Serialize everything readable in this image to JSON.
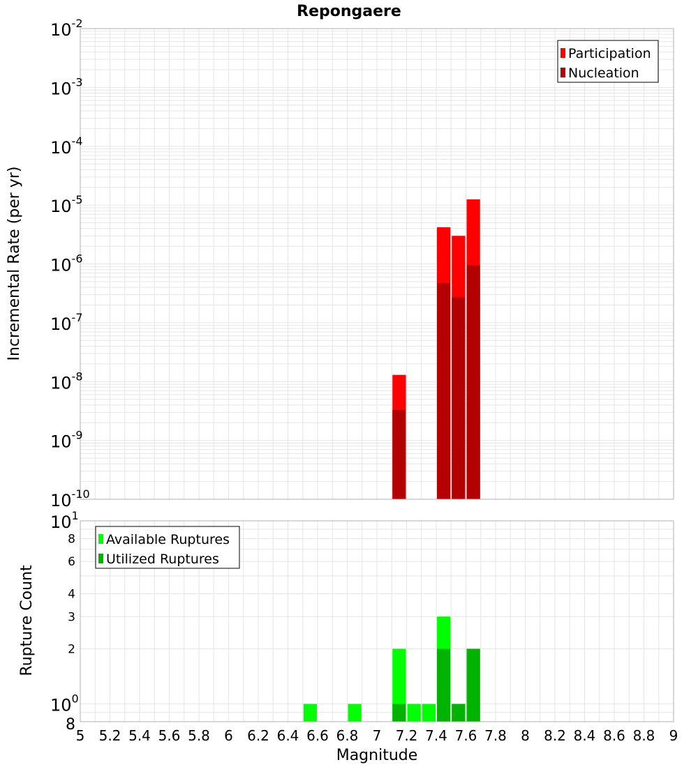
{
  "chart_data": [
    {
      "type": "bar",
      "title": "Repongaere",
      "xlabel": "",
      "ylabel": "Incremental Rate (per yr)",
      "yscale": "log",
      "xlim": [
        5,
        9
      ],
      "ylim": [
        1e-10,
        0.01
      ],
      "y_tick_exponents": [
        -2,
        -3,
        -4,
        -5,
        -6,
        -7,
        -8,
        -9,
        -10
      ],
      "grid": true,
      "legend_position": "top-right",
      "bin_width": 0.1,
      "series": [
        {
          "name": "Participation",
          "color": "#ff0000",
          "points": [
            {
              "x": 7.15,
              "y": 1.3e-08
            },
            {
              "x": 7.45,
              "y": 4.2e-06
            },
            {
              "x": 7.55,
              "y": 3e-06
            },
            {
              "x": 7.65,
              "y": 1.25e-05
            }
          ]
        },
        {
          "name": "Nucleation",
          "color": "#b30000",
          "points": [
            {
              "x": 7.15,
              "y": 3.3e-09
            },
            {
              "x": 7.45,
              "y": 4.7e-07
            },
            {
              "x": 7.55,
              "y": 2.7e-07
            },
            {
              "x": 7.65,
              "y": 9.5e-07
            }
          ]
        }
      ]
    },
    {
      "type": "bar",
      "title": "",
      "xlabel": "Magnitude",
      "ylabel": "Rupture Count",
      "yscale": "log",
      "xlim": [
        5,
        9
      ],
      "ylim": [
        0.8,
        10
      ],
      "x_ticks": [
        "5",
        "5.2",
        "5.4",
        "5.6",
        "5.8",
        "6",
        "6.2",
        "6.4",
        "6.6",
        "6.8",
        "7",
        "7.2",
        "7.4",
        "7.6",
        "7.8",
        "8",
        "8.2",
        "8.4",
        "8.6",
        "8.8",
        "9"
      ],
      "y_ticks": [
        {
          "value": 8,
          "label": "8"
        },
        {
          "value": 6,
          "label": "6"
        },
        {
          "value": 4,
          "label": "4"
        },
        {
          "value": 3,
          "label": "3"
        },
        {
          "value": 2,
          "label": "2"
        }
      ],
      "y_pow_ticks": [
        {
          "value": 10,
          "base": "10",
          "exp": "1"
        },
        {
          "value": 1,
          "base": "10",
          "exp": "0"
        }
      ],
      "y_bottom_label": "8",
      "grid": true,
      "legend_position": "top-left",
      "bin_width": 0.1,
      "series": [
        {
          "name": "Available Ruptures",
          "color": "#00ff00",
          "points": [
            {
              "x": 6.55,
              "y": 1
            },
            {
              "x": 6.85,
              "y": 1
            },
            {
              "x": 7.15,
              "y": 2
            },
            {
              "x": 7.25,
              "y": 1
            },
            {
              "x": 7.35,
              "y": 1
            },
            {
              "x": 7.45,
              "y": 3
            },
            {
              "x": 7.55,
              "y": 1
            },
            {
              "x": 7.65,
              "y": 2
            }
          ]
        },
        {
          "name": "Utilized Ruptures",
          "color": "#00b300",
          "points": [
            {
              "x": 7.15,
              "y": 1
            },
            {
              "x": 7.45,
              "y": 2
            },
            {
              "x": 7.55,
              "y": 1
            },
            {
              "x": 7.65,
              "y": 2
            }
          ]
        }
      ]
    }
  ]
}
